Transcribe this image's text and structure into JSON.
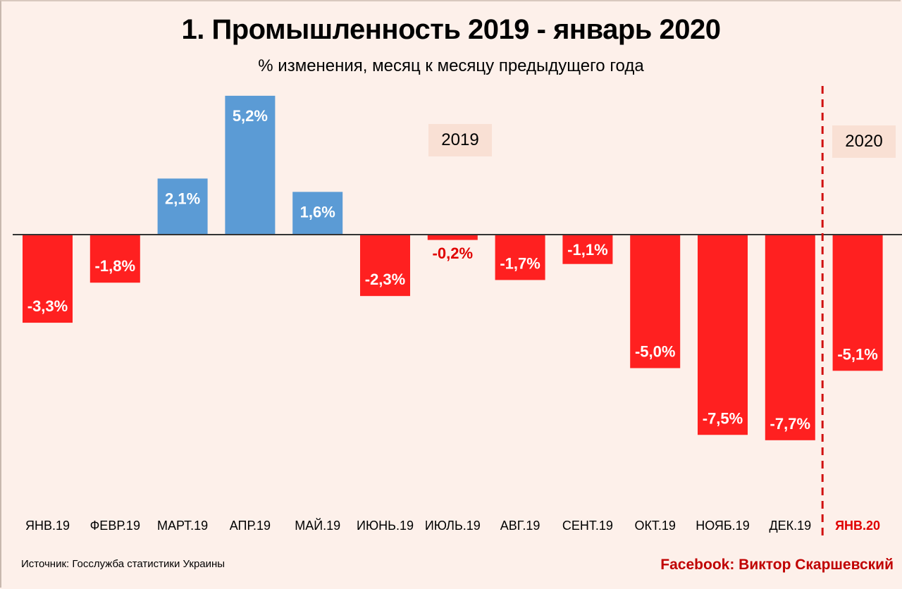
{
  "chart_data": {
    "type": "bar",
    "title": "1. Промышленность 2019 - январь 2020",
    "subtitle": "% изменения, месяц к месяцу предыдущего года",
    "xlabel": "",
    "ylabel": "",
    "categories": [
      "ЯНВ.19",
      "ФЕВР.19",
      "МАРТ.19",
      "АПР.19",
      "МАЙ.19",
      "ИЮНЬ.19",
      "ИЮЛЬ.19",
      "АВГ.19",
      "СЕНТ.19",
      "ОКТ.19",
      "НОЯБ.19",
      "ДЕК.19",
      "ЯНВ.20"
    ],
    "values": [
      -3.3,
      -1.8,
      2.1,
      5.2,
      1.6,
      -2.3,
      -0.2,
      -1.7,
      -1.1,
      -5.0,
      -7.5,
      -7.7,
      -5.1
    ],
    "data_labels": [
      "-3,3%",
      "-1,8%",
      "2,1%",
      "5,2%",
      "1,6%",
      "-2,3%",
      "-0,2%",
      "-1,7%",
      "-1,1%",
      "-5,0%",
      "-7,5%",
      "-7,7%",
      "-5,1%"
    ],
    "ylim": [
      -8.5,
      5.5
    ],
    "grid": false,
    "legend": "none",
    "colors": {
      "positive": "#5b9bd5",
      "negative": "#ff2020",
      "label_on_bar": "#ffffff",
      "label_outside": "#e00000",
      "highlight_tick": "#e00000",
      "divider": "#d01010",
      "zero_line": "#333333",
      "year_box": "#f9e0d4"
    },
    "annotations": {
      "year_2019": "2019",
      "year_2020": "2020",
      "divider_after_category": "ДЕК.19",
      "highlighted_category": "ЯНВ.20"
    }
  },
  "footer": {
    "source": "Источник: Госслужба статистики Украины",
    "credit": "Facebook: Виктор Скаршевский"
  }
}
